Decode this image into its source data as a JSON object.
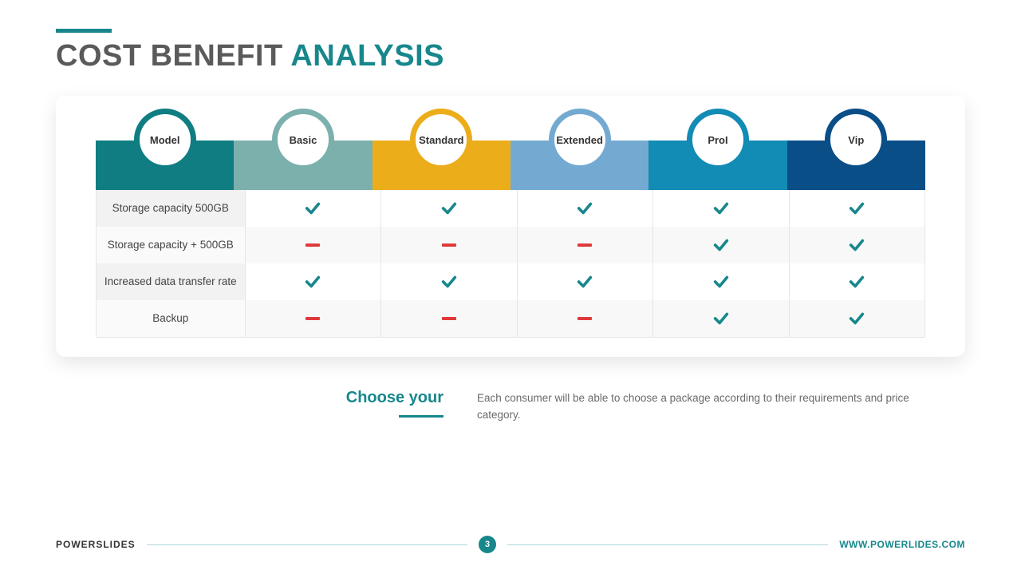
{
  "title": {
    "part1": "COST BENEFIT",
    "part2": "ANALYSIS",
    "accent_color": "#17878c",
    "gray_color": "#5a5a5a"
  },
  "plans": [
    {
      "label": "Model",
      "header_color": "#0f7d81",
      "ring_color": "#0f7d81"
    },
    {
      "label": "Basic",
      "header_color": "#7bb0ad",
      "ring_color": "#7bb0ad"
    },
    {
      "label": "Standard",
      "header_color": "#ecad1a",
      "ring_color": "#ecad1a"
    },
    {
      "label": "Extended",
      "header_color": "#74aad2",
      "ring_color": "#74aad2"
    },
    {
      "label": "ProI",
      "header_color": "#128bb5",
      "ring_color": "#128bb5"
    },
    {
      "label": "Vip",
      "header_color": "#0a4e88",
      "ring_color": "#0a4e88"
    }
  ],
  "features": [
    {
      "label": "Storage capacity 500GB",
      "values": [
        "check",
        "check",
        "check",
        "check",
        "check"
      ]
    },
    {
      "label": "Storage capacity + 500GB",
      "values": [
        "dash",
        "dash",
        "dash",
        "check",
        "check"
      ]
    },
    {
      "label": "Increased data transfer rate",
      "values": [
        "check",
        "check",
        "check",
        "check",
        "check"
      ]
    },
    {
      "label": "Backup",
      "values": [
        "dash",
        "dash",
        "dash",
        "check",
        "check"
      ]
    }
  ],
  "icons": {
    "check_color": "#17878c",
    "dash_color": "#e03a3a"
  },
  "subtitle": {
    "heading": "Choose your",
    "body": "Each consumer will be able to choose a package according to their requirements and price category."
  },
  "footer": {
    "brand": "POWERSLIDES",
    "page": "3",
    "url": "WWW.POWERLIDES.COM",
    "line_color": "#17878c"
  }
}
